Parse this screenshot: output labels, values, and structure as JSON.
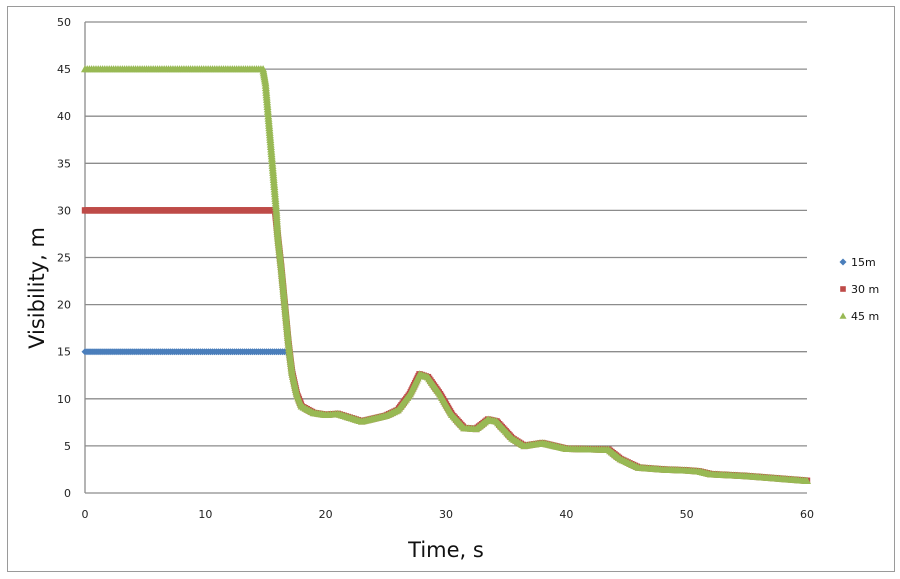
{
  "chart_data": {
    "type": "scatter",
    "title": "",
    "xlabel": "Time, s",
    "ylabel": "Visibility, m",
    "xlim": [
      0,
      60
    ],
    "ylim": [
      0,
      50
    ],
    "x_ticks": [
      0,
      10,
      20,
      30,
      40,
      50,
      60
    ],
    "y_ticks": [
      0,
      5,
      10,
      15,
      20,
      25,
      30,
      35,
      40,
      45,
      50
    ],
    "grid": {
      "horizontal": true,
      "vertical": false
    },
    "legend_position": "right",
    "series": [
      {
        "name": "15m",
        "color": "#4a7ebb",
        "marker": "diamond",
        "points": [
          [
            0,
            15
          ],
          [
            16.9,
            15
          ],
          [
            17.1,
            13.8
          ],
          [
            17.5,
            11.0
          ],
          [
            18.0,
            9.2
          ]
        ]
      },
      {
        "name": "30 m",
        "color": "#be4b48",
        "marker": "square",
        "points": [
          [
            0,
            30
          ],
          [
            15.8,
            30
          ],
          [
            16.0,
            27.5
          ],
          [
            16.3,
            24.0
          ],
          [
            16.6,
            20.0
          ],
          [
            16.9,
            16.0
          ],
          [
            17.2,
            12.8
          ],
          [
            17.6,
            10.5
          ],
          [
            18.0,
            9.2
          ],
          [
            19,
            8.5
          ],
          [
            20,
            8.3
          ],
          [
            21,
            8.4
          ],
          [
            22,
            8.0
          ],
          [
            23,
            7.6
          ],
          [
            24,
            7.9
          ],
          [
            25,
            8.2
          ],
          [
            26,
            8.8
          ],
          [
            27,
            10.5
          ],
          [
            27.8,
            12.6
          ],
          [
            28.5,
            12.3
          ],
          [
            29.5,
            10.5
          ],
          [
            30.5,
            8.3
          ],
          [
            31.5,
            6.9
          ],
          [
            32.5,
            6.8
          ],
          [
            33.5,
            7.8
          ],
          [
            34.2,
            7.6
          ],
          [
            35.5,
            5.8
          ],
          [
            36.5,
            5.0
          ],
          [
            38,
            5.3
          ],
          [
            39,
            5.0
          ],
          [
            40,
            4.7
          ],
          [
            43.5,
            4.6
          ],
          [
            44.5,
            3.6
          ],
          [
            46,
            2.7
          ],
          [
            48,
            2.5
          ],
          [
            50,
            2.4
          ],
          [
            51,
            2.3
          ],
          [
            52,
            2.0
          ],
          [
            55,
            1.8
          ],
          [
            58,
            1.5
          ],
          [
            60,
            1.3
          ]
        ]
      },
      {
        "name": "45 m",
        "color": "#98b954",
        "marker": "triangle",
        "points": [
          [
            0,
            45
          ],
          [
            14.8,
            45
          ],
          [
            15.0,
            43.5
          ],
          [
            15.1,
            42.0
          ],
          [
            15.2,
            40.5
          ],
          [
            15.3,
            39.0
          ],
          [
            15.4,
            37.5
          ],
          [
            15.5,
            36.0
          ],
          [
            15.6,
            34.5
          ],
          [
            15.7,
            33.0
          ],
          [
            15.8,
            31.5
          ],
          [
            15.9,
            30.0
          ],
          [
            16.0,
            27.5
          ],
          [
            16.3,
            24.0
          ],
          [
            16.6,
            20.0
          ],
          [
            16.9,
            16.0
          ],
          [
            17.2,
            12.8
          ],
          [
            17.6,
            10.5
          ],
          [
            18.0,
            9.2
          ],
          [
            19,
            8.5
          ],
          [
            20,
            8.3
          ],
          [
            21,
            8.4
          ],
          [
            22,
            8.0
          ],
          [
            23,
            7.6
          ],
          [
            24,
            7.9
          ],
          [
            25,
            8.2
          ],
          [
            26,
            8.8
          ],
          [
            27,
            10.5
          ],
          [
            27.8,
            12.6
          ],
          [
            28.5,
            12.3
          ],
          [
            29.5,
            10.5
          ],
          [
            30.5,
            8.3
          ],
          [
            31.5,
            6.9
          ],
          [
            32.5,
            6.8
          ],
          [
            33.5,
            7.8
          ],
          [
            34.2,
            7.6
          ],
          [
            35.5,
            5.8
          ],
          [
            36.5,
            5.0
          ],
          [
            38,
            5.3
          ],
          [
            39,
            5.0
          ],
          [
            40,
            4.7
          ],
          [
            43.5,
            4.6
          ],
          [
            44.5,
            3.6
          ],
          [
            46,
            2.7
          ],
          [
            48,
            2.5
          ],
          [
            50,
            2.4
          ],
          [
            51,
            2.3
          ],
          [
            52,
            2.0
          ],
          [
            55,
            1.8
          ],
          [
            58,
            1.5
          ],
          [
            60,
            1.3
          ]
        ]
      }
    ]
  },
  "legend": {
    "items": [
      {
        "label": "15m",
        "color": "#4a7ebb",
        "marker": "diamond"
      },
      {
        "label": "30 m",
        "color": "#be4b48",
        "marker": "square"
      },
      {
        "label": "45 m",
        "color": "#98b954",
        "marker": "triangle"
      }
    ]
  },
  "axes": {
    "x_title": "Time, s",
    "y_title": "Visibility, m",
    "x_tick_labels": [
      "0",
      "10",
      "20",
      "30",
      "40",
      "50",
      "60"
    ],
    "y_tick_labels": [
      "0",
      "5",
      "10",
      "15",
      "20",
      "25",
      "30",
      "35",
      "40",
      "45",
      "50"
    ]
  },
  "colors": {
    "grid": "#8c8c8c",
    "frame": "#9a9a9a"
  }
}
